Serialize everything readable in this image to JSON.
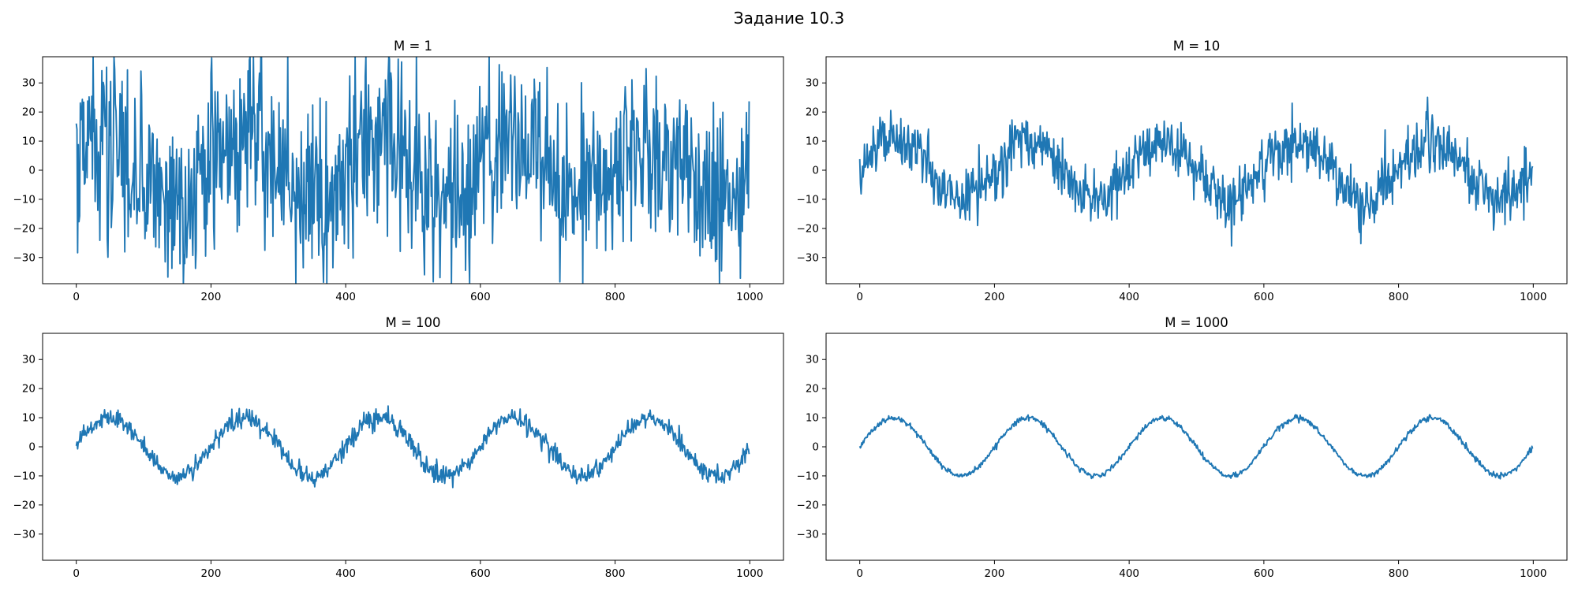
{
  "figure": {
    "title": "Задание 10.3"
  },
  "chart_data": [
    {
      "type": "line",
      "title": "M = 1",
      "xlim": [
        -50,
        1050
      ],
      "ylim": [
        -39,
        39
      ],
      "xticks": [
        0,
        200,
        400,
        600,
        800,
        1000
      ],
      "yticks": [
        -30,
        -20,
        -10,
        0,
        10,
        20,
        30
      ],
      "grid": false,
      "n_points": 1000,
      "signal_amplitude": 10,
      "signal_period": 200,
      "noise_std": 15.5,
      "color": "#1f77b4",
      "series": [
        {
          "x_range": [
            0,
            999
          ],
          "y_range": [
            -39,
            39
          ]
        }
      ]
    },
    {
      "type": "line",
      "title": "M = 10",
      "xlim": [
        -50,
        1050
      ],
      "ylim": [
        -39,
        39
      ],
      "xticks": [
        0,
        200,
        400,
        600,
        800,
        1000
      ],
      "yticks": [
        -30,
        -20,
        -10,
        0,
        10,
        20,
        30
      ],
      "grid": false,
      "n_points": 1000,
      "signal_amplitude": 10,
      "signal_period": 200,
      "noise_std": 5,
      "color": "#1f77b4",
      "series": [
        {
          "x_range": [
            0,
            999
          ],
          "y_range": [
            -26,
            26
          ]
        }
      ]
    },
    {
      "type": "line",
      "title": "M = 100",
      "xlim": [
        -50,
        1050
      ],
      "ylim": [
        -39,
        39
      ],
      "xticks": [
        0,
        200,
        400,
        600,
        800,
        1000
      ],
      "yticks": [
        -30,
        -20,
        -10,
        0,
        10,
        20,
        30
      ],
      "grid": false,
      "n_points": 1000,
      "signal_amplitude": 10,
      "signal_period": 200,
      "noise_std": 1.6,
      "color": "#1f77b4",
      "series": [
        {
          "x_range": [
            0,
            999
          ],
          "y_range": [
            -14,
            16
          ]
        }
      ]
    },
    {
      "type": "line",
      "title": "M = 1000",
      "xlim": [
        -50,
        1050
      ],
      "ylim": [
        -39,
        39
      ],
      "xticks": [
        0,
        200,
        400,
        600,
        800,
        1000
      ],
      "yticks": [
        -30,
        -20,
        -10,
        0,
        10,
        20,
        30
      ],
      "grid": false,
      "n_points": 1000,
      "signal_amplitude": 10,
      "signal_period": 200,
      "noise_std": 0.5,
      "color": "#1f77b4",
      "series": [
        {
          "x_range": [
            0,
            999
          ],
          "y_range": [
            -11,
            11
          ]
        }
      ]
    }
  ]
}
